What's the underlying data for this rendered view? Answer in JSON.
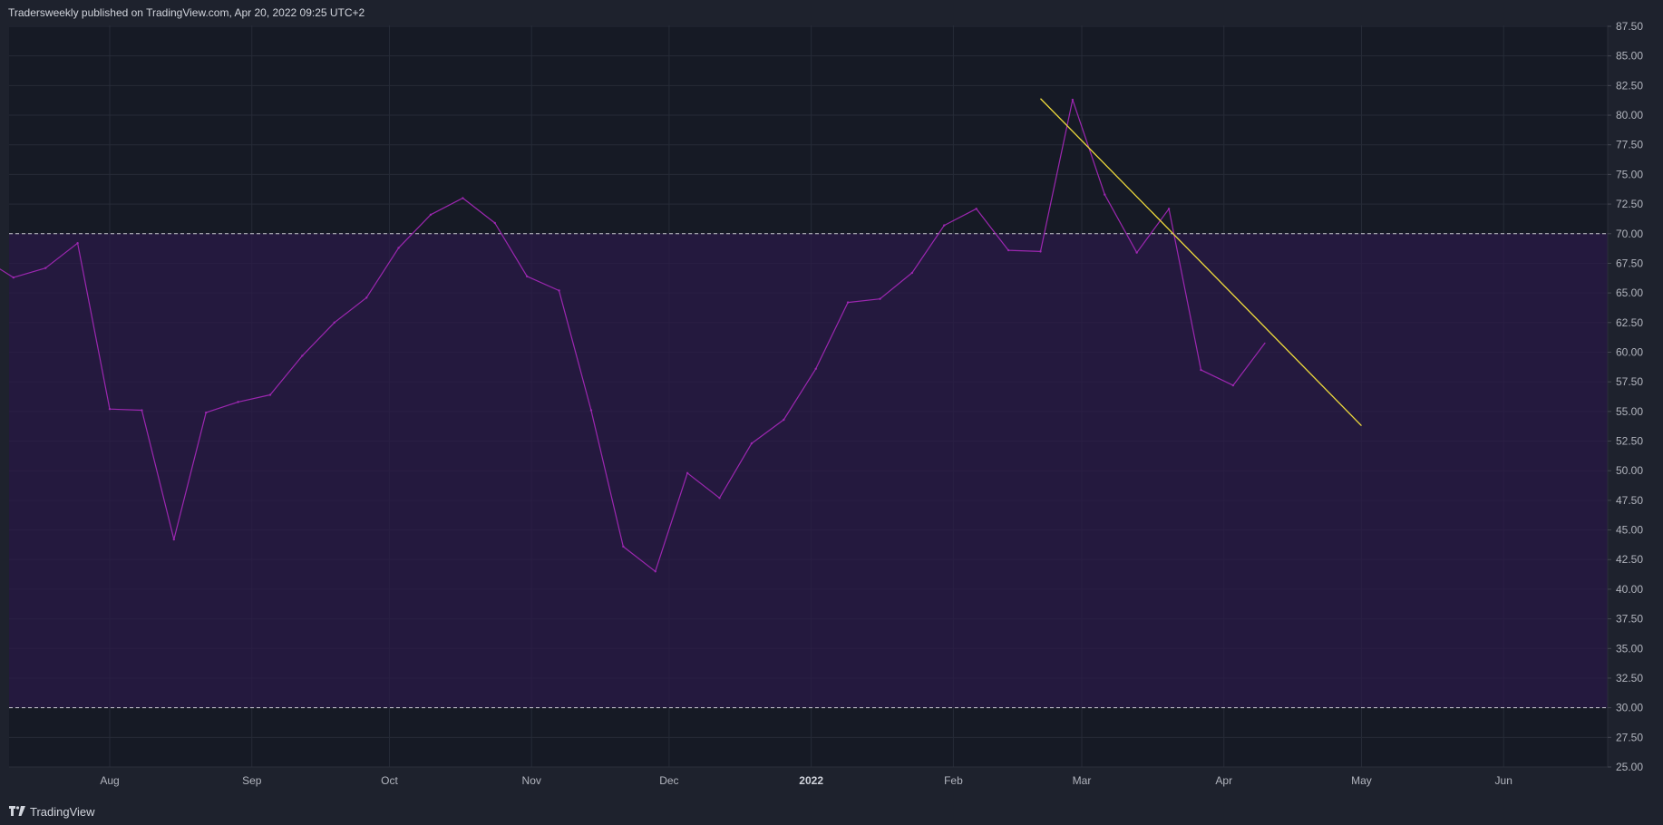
{
  "header": {
    "text": "Tradersweekly published on TradingView.com, Apr 20, 2022 09:25 UTC+2"
  },
  "footer": {
    "brand": "TradingView"
  },
  "colors": {
    "background": "#161a25",
    "band": "#2b1a48",
    "grid": "#262b37",
    "rsi_line": "#9c27b0",
    "trendline": "#f0dc3c",
    "level_line": "#c8c8d0",
    "axis_text": "#b2b5be"
  },
  "chart_data": {
    "type": "line",
    "title": "",
    "xlabel": "",
    "ylabel": "",
    "ylim": [
      25,
      87.5
    ],
    "y_ticks": [
      "25.00",
      "27.50",
      "30.00",
      "32.50",
      "35.00",
      "37.50",
      "40.00",
      "42.50",
      "45.00",
      "47.50",
      "50.00",
      "52.50",
      "55.00",
      "57.50",
      "60.00",
      "62.50",
      "65.00",
      "67.50",
      "70.00",
      "72.50",
      "75.00",
      "77.50",
      "80.00",
      "82.50",
      "85.00",
      "87.50"
    ],
    "x_ticks": [
      {
        "label": "Aug",
        "date": "2021-08-01"
      },
      {
        "label": "Sep",
        "date": "2021-09-01"
      },
      {
        "label": "Oct",
        "date": "2021-10-01"
      },
      {
        "label": "Nov",
        "date": "2021-11-01"
      },
      {
        "label": "Dec",
        "date": "2021-12-01"
      },
      {
        "label": "2022",
        "date": "2022-01-01"
      },
      {
        "label": "Feb",
        "date": "2022-02-01"
      },
      {
        "label": "Mar",
        "date": "2022-03-01"
      },
      {
        "label": "Apr",
        "date": "2022-04-01"
      },
      {
        "label": "May",
        "date": "2022-05-01"
      },
      {
        "label": "Jun",
        "date": "2022-06-01"
      }
    ],
    "band": {
      "upper": 70,
      "lower": 30
    },
    "series": [
      {
        "x": [
          "2021-07-11",
          "2021-07-18",
          "2021-07-25",
          "2021-08-01",
          "2021-08-08",
          "2021-08-15",
          "2021-08-22",
          "2021-08-29",
          "2021-09-05",
          "2021-09-12",
          "2021-09-19",
          "2021-09-26",
          "2021-10-03",
          "2021-10-10",
          "2021-10-17",
          "2021-10-24",
          "2021-10-31",
          "2021-11-07",
          "2021-11-14",
          "2021-11-21",
          "2021-11-28",
          "2021-12-05",
          "2021-12-12",
          "2021-12-19",
          "2021-12-26",
          "2022-01-02",
          "2022-01-09",
          "2022-01-16",
          "2022-01-23",
          "2022-01-30",
          "2022-02-06",
          "2022-02-13",
          "2022-02-20",
          "2022-02-27",
          "2022-03-06",
          "2022-03-13",
          "2022-03-20",
          "2022-03-27",
          "2022-04-03"
        ],
        "values": [
          66.3,
          67.1,
          69.2,
          55.2,
          55.1,
          44.2,
          54.9,
          55.8,
          56.4,
          59.7,
          62.5,
          64.6,
          68.8,
          71.6,
          73.0,
          70.9,
          66.4,
          65.2,
          55.1,
          43.6,
          41.5,
          49.8,
          47.7,
          52.3,
          54.3,
          58.6,
          64.2,
          64.5,
          66.7,
          70.7,
          72.1,
          68.6,
          68.5,
          81.3,
          73.3,
          68.4,
          72.1,
          58.5,
          57.2
        ]
      }
    ],
    "partial_segments": [
      {
        "x": [
          "2021-07-04",
          "2021-07-11"
        ],
        "values": [
          68.0,
          66.3
        ]
      },
      {
        "x": [
          "2022-04-03",
          "2022-04-10"
        ],
        "values": [
          57.2,
          60.8
        ]
      }
    ],
    "trendline": {
      "x": [
        "2022-02-20",
        "2022-05-01"
      ],
      "values": [
        81.4,
        53.8
      ]
    }
  }
}
